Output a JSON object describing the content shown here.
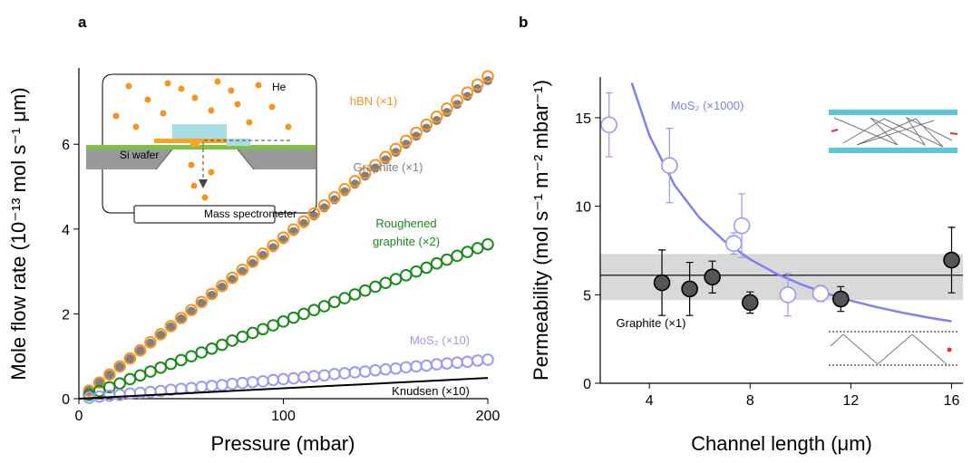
{
  "chart_data": [
    {
      "type": "scatter",
      "title": "a",
      "xlabel": "Pressure (mbar)",
      "ylabel": "Mole flow rate (10⁻¹³ mol s⁻¹ μm)",
      "xlim": [
        0,
        200
      ],
      "ylim": [
        0,
        7.8
      ],
      "xticks": [
        0,
        100,
        200
      ],
      "yticks": [
        0,
        2,
        4,
        6
      ],
      "inset_labels": [
        "He",
        "Si wafer",
        "Mass spectrometer"
      ],
      "series": [
        {
          "name": "Graphite (×1)",
          "color": "#808080",
          "marker": "filled",
          "x": [
            5,
            10,
            15,
            20,
            25,
            30,
            35,
            40,
            45,
            50,
            55,
            60,
            65,
            70,
            75,
            80,
            85,
            90,
            95,
            100,
            105,
            110,
            115,
            120,
            125,
            130,
            135,
            140,
            145,
            150,
            155,
            160,
            165,
            170,
            175,
            180,
            185,
            190,
            195,
            200
          ],
          "values": [
            0.19,
            0.38,
            0.56,
            0.75,
            0.94,
            1.13,
            1.31,
            1.5,
            1.69,
            1.88,
            2.06,
            2.25,
            2.44,
            2.63,
            2.81,
            3.0,
            3.19,
            3.38,
            3.56,
            3.75,
            3.94,
            4.13,
            4.31,
            4.5,
            4.69,
            4.88,
            5.06,
            5.25,
            5.44,
            5.63,
            5.81,
            6.0,
            6.19,
            6.38,
            6.56,
            6.75,
            6.94,
            7.13,
            7.31,
            7.5
          ]
        },
        {
          "name": "hBN (×1)",
          "color": "#f7931e",
          "marker": "open",
          "x": [
            5,
            10,
            15,
            20,
            25,
            30,
            35,
            40,
            45,
            50,
            55,
            60,
            65,
            70,
            75,
            80,
            85,
            90,
            95,
            100,
            105,
            110,
            115,
            120,
            125,
            130,
            135,
            140,
            145,
            150,
            155,
            160,
            165,
            170,
            175,
            180,
            185,
            190,
            195,
            200
          ],
          "values": [
            0.19,
            0.38,
            0.57,
            0.76,
            0.95,
            1.14,
            1.33,
            1.52,
            1.71,
            1.9,
            2.09,
            2.28,
            2.47,
            2.66,
            2.85,
            3.04,
            3.23,
            3.42,
            3.61,
            3.8,
            3.99,
            4.18,
            4.37,
            4.56,
            4.75,
            4.94,
            5.13,
            5.32,
            5.51,
            5.7,
            5.89,
            6.08,
            6.27,
            6.46,
            6.65,
            6.84,
            7.03,
            7.22,
            7.41,
            7.6
          ]
        },
        {
          "name": "Roughened graphite (×2)",
          "color": "#1a8a1a",
          "marker": "open",
          "x": [
            5,
            10,
            15,
            20,
            25,
            30,
            35,
            40,
            45,
            50,
            55,
            60,
            65,
            70,
            75,
            80,
            85,
            90,
            95,
            100,
            105,
            110,
            115,
            120,
            125,
            130,
            135,
            140,
            145,
            150,
            155,
            160,
            165,
            170,
            175,
            180,
            185,
            190,
            195,
            200
          ],
          "values": [
            0.09,
            0.18,
            0.27,
            0.36,
            0.46,
            0.55,
            0.64,
            0.73,
            0.82,
            0.91,
            1.0,
            1.09,
            1.18,
            1.27,
            1.37,
            1.46,
            1.55,
            1.64,
            1.73,
            1.82,
            1.91,
            2.0,
            2.09,
            2.18,
            2.28,
            2.37,
            2.46,
            2.55,
            2.64,
            2.73,
            2.82,
            2.91,
            3.0,
            3.09,
            3.19,
            3.28,
            3.37,
            3.46,
            3.55,
            3.64
          ]
        },
        {
          "name": "MoS₂ (×10)",
          "color": "#9a9af0",
          "marker": "open",
          "x": [
            5,
            10,
            15,
            20,
            25,
            30,
            35,
            40,
            45,
            50,
            55,
            60,
            65,
            70,
            75,
            80,
            85,
            90,
            95,
            100,
            105,
            110,
            115,
            120,
            125,
            130,
            135,
            140,
            145,
            150,
            155,
            160,
            165,
            170,
            175,
            180,
            185,
            190,
            195,
            200
          ],
          "values": [
            0.02,
            0.05,
            0.07,
            0.09,
            0.12,
            0.14,
            0.16,
            0.18,
            0.21,
            0.23,
            0.25,
            0.28,
            0.3,
            0.32,
            0.35,
            0.37,
            0.39,
            0.41,
            0.44,
            0.46,
            0.48,
            0.51,
            0.53,
            0.55,
            0.58,
            0.6,
            0.62,
            0.64,
            0.67,
            0.69,
            0.71,
            0.74,
            0.76,
            0.78,
            0.81,
            0.83,
            0.85,
            0.87,
            0.9,
            0.92
          ]
        },
        {
          "name": "Knudsen (×10)",
          "color": "#000000",
          "marker": "line",
          "x": [
            0,
            200
          ],
          "values": [
            0,
            0.49
          ]
        }
      ]
    },
    {
      "type": "scatter",
      "title": "b",
      "xlabel": "Channel length (μm)",
      "ylabel": "Permeability (mol s⁻¹ m⁻² mbar⁻¹)",
      "xlim": [
        2.05,
        16.45
      ],
      "ylim": [
        0,
        17.3
      ],
      "xticks": [
        4,
        8,
        12,
        16
      ],
      "yticks": [
        0,
        5,
        10,
        15
      ],
      "reference": {
        "value": 6.1,
        "band": [
          4.7,
          7.3
        ]
      },
      "series": [
        {
          "name": "MoS₂ (×1000)",
          "color": "#8080f0",
          "marker": "line",
          "x": [
            3.3,
            4,
            5,
            6,
            7,
            8,
            9,
            10,
            11,
            12,
            13,
            14,
            15,
            16
          ],
          "values": [
            16.97,
            14.0,
            11.2,
            9.33,
            8.0,
            7.0,
            6.22,
            5.6,
            5.09,
            4.67,
            4.31,
            4.0,
            3.73,
            3.5
          ]
        },
        {
          "color": "#9a9af0",
          "marker": "open",
          "x": [
            2.4,
            4.8,
            7.35,
            7.67,
            9.5,
            10.8
          ],
          "values": [
            14.6,
            12.3,
            7.9,
            8.9,
            5.0,
            5.07
          ],
          "errors": [
            1.8,
            2.1,
            0.6,
            1.8,
            1.2,
            0.45
          ]
        },
        {
          "name": "Graphite (×1)",
          "color": "#555555",
          "marker": "filled",
          "x": [
            4.5,
            5.6,
            6.5,
            8.0,
            11.6,
            16.0
          ],
          "values": [
            5.68,
            5.33,
            6.0,
            4.56,
            4.76,
            6.96
          ],
          "errors": [
            1.85,
            1.5,
            0.9,
            0.6,
            0.7,
            1.85
          ]
        }
      ]
    }
  ]
}
